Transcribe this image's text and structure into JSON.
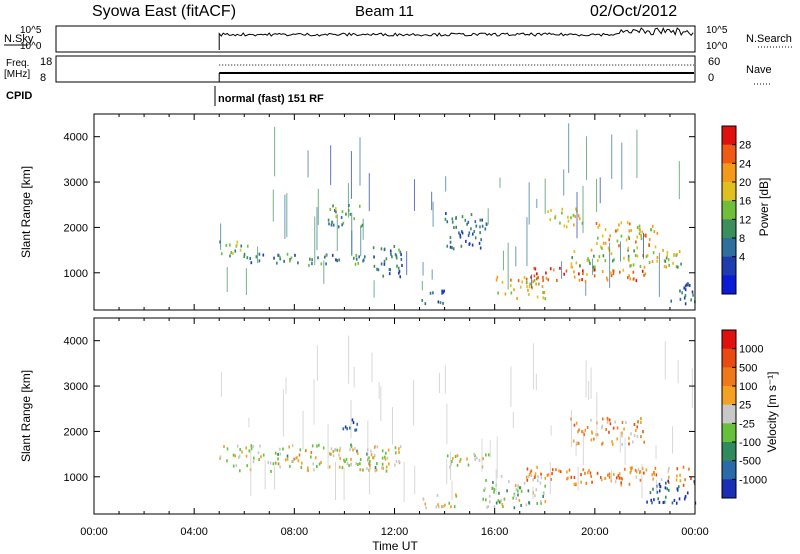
{
  "header": {
    "title": "Syowa East (fitACF)",
    "beam": "Beam 11",
    "date": "02/Oct/2012"
  },
  "top_panels": {
    "nsky_label": "N.Sky",
    "nsky_ticks": [
      "10^5",
      "10^0"
    ],
    "nsearch_label": "N.Search",
    "nsearch_ticks": [
      "10^5",
      "10^0"
    ],
    "freq_label": "Freq.",
    "freq_unit": "[MHz]",
    "freq_ticks": [
      "18",
      "8"
    ],
    "nave_label": "Nave",
    "nave_ticks": [
      "60",
      "0"
    ],
    "cpid_label": "CPID",
    "cpid_value": "normal (fast) 151 RF",
    "data_start_hour": 5
  },
  "x_axis": {
    "label": "Time UT",
    "tick_labels": [
      "00:00",
      "04:00",
      "08:00",
      "12:00",
      "16:00",
      "20:00",
      "00:00"
    ],
    "range_hours": [
      0,
      24
    ]
  },
  "chart_data": [
    {
      "type": "heatmap",
      "name": "power",
      "ylabel": "Slant Range [km]",
      "ylim": [
        180,
        4500
      ],
      "yticks": [
        "4000",
        "3000",
        "2000",
        "1000"
      ],
      "colorbar_label": "Power [dB]",
      "colorbar_ticks": [
        "28",
        "24",
        "20",
        "16",
        "12",
        "8",
        "4"
      ],
      "colorscale": [
        "#0a1bd6",
        "#1f3bb0",
        "#2e6f9e",
        "#3b8f5c",
        "#6fbf3a",
        "#e0c020",
        "#f49a1a",
        "#ef5a14",
        "#e0100e"
      ],
      "clim": [
        0,
        32
      ],
      "regions": [
        {
          "t0": 5.0,
          "t1": 6.2,
          "r0": 1300,
          "r1": 1700,
          "v": 14
        },
        {
          "t0": 6.2,
          "t1": 11.0,
          "r0": 1150,
          "r1": 1400,
          "v": 11
        },
        {
          "t0": 9.3,
          "t1": 10.7,
          "r0": 2000,
          "r1": 2500,
          "v": 13
        },
        {
          "t0": 11.0,
          "t1": 12.3,
          "r0": 900,
          "r1": 1600,
          "v": 9
        },
        {
          "t0": 13.0,
          "t1": 14.0,
          "r0": 300,
          "r1": 600,
          "v": 8
        },
        {
          "t0": 14.0,
          "t1": 15.7,
          "r0": 1500,
          "r1": 2300,
          "v": 10
        },
        {
          "t0": 16.0,
          "t1": 18.0,
          "r0": 400,
          "r1": 900,
          "v": 22
        },
        {
          "t0": 17.5,
          "t1": 22.0,
          "r0": 800,
          "r1": 1100,
          "v": 26
        },
        {
          "t0": 19.0,
          "t1": 23.5,
          "r0": 1100,
          "r1": 1500,
          "v": 18
        },
        {
          "t0": 20.0,
          "t1": 22.5,
          "r0": 1500,
          "r1": 2100,
          "v": 21
        },
        {
          "t0": 18.0,
          "t1": 19.5,
          "r0": 2000,
          "r1": 2400,
          "v": 19
        },
        {
          "t0": 23.0,
          "t1": 24.0,
          "r0": 300,
          "r1": 800,
          "v": 9
        }
      ]
    },
    {
      "type": "heatmap",
      "name": "velocity",
      "ylabel": "Slant Range [km]",
      "ylim": [
        180,
        4500
      ],
      "yticks": [
        "4000",
        "3000",
        "2000",
        "1000"
      ],
      "colorbar_label": "Velocity [m s⁻¹]",
      "colorbar_ticks": [
        "1000",
        "500",
        "100",
        "25",
        "-25",
        "-100",
        "-500",
        "-1000"
      ],
      "colorscale": [
        "#1a2fb5",
        "#2a6aa8",
        "#2f8a5c",
        "#66c03a",
        "#c8c8c8",
        "#f4a020",
        "#f07818",
        "#e84a12",
        "#e0100e"
      ],
      "clim": [
        1000,
        -1000
      ],
      "regions": [
        {
          "t0": 5.0,
          "t1": 12.3,
          "r0": 1100,
          "r1": 1700,
          "v": 0
        },
        {
          "t0": 9.8,
          "t1": 10.6,
          "r0": 2000,
          "r1": 2300,
          "v": 900
        },
        {
          "t0": 13.0,
          "t1": 14.5,
          "r0": 300,
          "r1": 600,
          "v": 0
        },
        {
          "t0": 14.0,
          "t1": 16.0,
          "r0": 1200,
          "r1": 1500,
          "v": 0
        },
        {
          "t0": 15.5,
          "t1": 18.0,
          "r0": 300,
          "r1": 1000,
          "v": 150
        },
        {
          "t0": 17.0,
          "t1": 24.0,
          "r0": 800,
          "r1": 1200,
          "v": -400
        },
        {
          "t0": 19.0,
          "t1": 22.0,
          "r0": 1700,
          "r1": 2300,
          "v": -300
        },
        {
          "t0": 22.0,
          "t1": 24.0,
          "r0": 400,
          "r1": 900,
          "v": 700
        }
      ]
    }
  ]
}
